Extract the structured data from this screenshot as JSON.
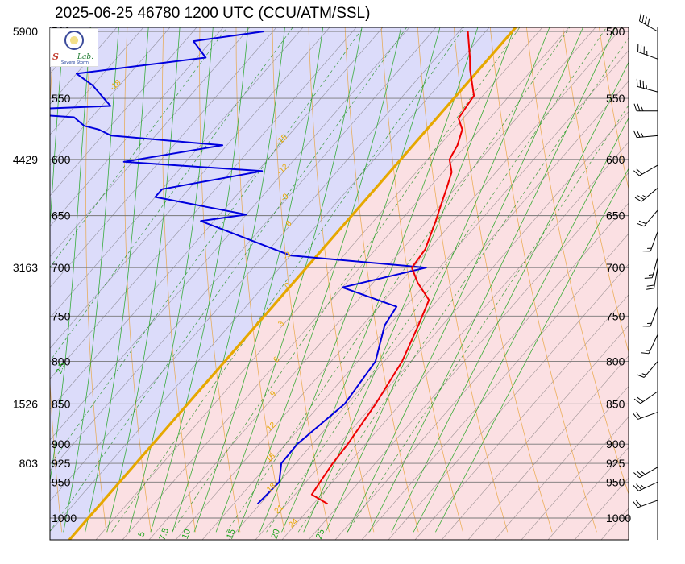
{
  "title": "2025-06-25 46780 1200 UTC (CCU/ATM/SSL)",
  "logo": {
    "mark_s": "S",
    "mark_lab": "Lab.",
    "sub": "Severe Storm"
  },
  "colors": {
    "cold_fill": "#dcdcfa",
    "warm_fill": "#fbe0e3",
    "freezing_line": "#e6a800",
    "temperature": "#ee0000",
    "dewpoint": "#0000dd",
    "dry_adiabat": "#e8a33a",
    "moist_adiabat": "#1aa31a",
    "mixing_ratio": "#118811",
    "isotherm_grid": "#555555",
    "isobar": "#777777"
  },
  "chart_data": {
    "type": "skew-t",
    "pressure_levels": [
      500,
      550,
      600,
      650,
      700,
      750,
      800,
      850,
      900,
      925,
      950,
      1000
    ],
    "height_labels": [
      {
        "pressure": 500,
        "height": "5900"
      },
      {
        "pressure": 600,
        "height": "4429"
      },
      {
        "pressure": 700,
        "height": "3163"
      },
      {
        "pressure": 850,
        "height": "1526"
      },
      {
        "pressure": 925,
        "height": "803"
      }
    ],
    "isotherm_labels": [
      "-15",
      "-12",
      "-9",
      "-6",
      "-3",
      "0",
      "3",
      "6",
      "9",
      "12",
      "15",
      "18",
      "21",
      "24"
    ],
    "isotherm_label_values": [
      -15,
      -12,
      -9,
      -6,
      -3,
      0,
      3,
      6,
      9,
      12,
      15,
      18,
      21,
      24
    ],
    "moist_labels": [
      "5",
      "7.5",
      "10",
      "15",
      "20",
      "25"
    ],
    "moist_label_values": [
      5,
      7.5,
      10,
      15,
      20,
      25
    ],
    "extra_label": "-18",
    "extra_label_2": "2.5",
    "temperature_profile": [
      [
        980,
        25.6
      ],
      [
        967,
        22.9
      ],
      [
        950,
        22.6
      ],
      [
        925,
        22.2
      ],
      [
        900,
        22.0
      ],
      [
        850,
        21.2
      ],
      [
        800,
        20.0
      ],
      [
        760,
        18.3
      ],
      [
        733,
        17.0
      ],
      [
        715,
        14.0
      ],
      [
        700,
        11.9
      ],
      [
        682,
        11.6
      ],
      [
        655,
        10.0
      ],
      [
        640,
        9.0
      ],
      [
        625,
        8.0
      ],
      [
        611,
        7.0
      ],
      [
        600,
        5.5
      ],
      [
        588,
        5.0
      ],
      [
        575,
        4.0
      ],
      [
        566,
        2.5
      ],
      [
        556,
        2.2
      ],
      [
        548,
        2.0
      ],
      [
        528,
        -1.0
      ],
      [
        519,
        -2.2
      ],
      [
        500,
        -5.0
      ]
    ],
    "dewpoint_profile": [
      [
        980,
        17.7
      ],
      [
        950,
        18.0
      ],
      [
        925,
        16.4
      ],
      [
        900,
        16.3
      ],
      [
        850,
        17.7
      ],
      [
        800,
        17.0
      ],
      [
        760,
        14.5
      ],
      [
        740,
        14.0
      ],
      [
        720,
        6.0
      ],
      [
        700,
        13.5
      ],
      [
        688,
        -3.0
      ],
      [
        655,
        -16.5
      ],
      [
        649,
        -12.0
      ],
      [
        633,
        -24.0
      ],
      [
        626,
        -24.0
      ],
      [
        610,
        -14.5
      ],
      [
        602,
        -31.0
      ],
      [
        588,
        -21.5
      ],
      [
        580,
        -35.0
      ],
      [
        575,
        -37.0
      ],
      [
        572,
        -39.0
      ],
      [
        565,
        -41.0
      ],
      [
        560,
        -52.0
      ],
      [
        556,
        -38.0
      ],
      [
        548,
        -40.0
      ],
      [
        540,
        -42.0
      ],
      [
        531,
        -45.0
      ],
      [
        519,
        -32.0
      ],
      [
        507,
        -35.0
      ],
      [
        500,
        -28.0
      ]
    ],
    "wind_barbs": [
      {
        "pressure": 500,
        "direction": 300,
        "speed_kt": 40
      },
      {
        "pressure": 520,
        "direction": 290,
        "speed_kt": 35
      },
      {
        "pressure": 545,
        "direction": 285,
        "speed_kt": 35
      },
      {
        "pressure": 560,
        "direction": 270,
        "speed_kt": 25
      },
      {
        "pressure": 580,
        "direction": 265,
        "speed_kt": 25
      },
      {
        "pressure": 605,
        "direction": 240,
        "speed_kt": 20
      },
      {
        "pressure": 625,
        "direction": 230,
        "speed_kt": 25
      },
      {
        "pressure": 645,
        "direction": 220,
        "speed_kt": 20
      },
      {
        "pressure": 665,
        "direction": 200,
        "speed_kt": 15
      },
      {
        "pressure": 690,
        "direction": 195,
        "speed_kt": 15
      },
      {
        "pressure": 700,
        "direction": 190,
        "speed_kt": 20
      },
      {
        "pressure": 740,
        "direction": 200,
        "speed_kt": 15
      },
      {
        "pressure": 770,
        "direction": 205,
        "speed_kt": 15
      },
      {
        "pressure": 800,
        "direction": 220,
        "speed_kt": 15
      },
      {
        "pressure": 835,
        "direction": 235,
        "speed_kt": 20
      },
      {
        "pressure": 860,
        "direction": 250,
        "speed_kt": 20
      },
      {
        "pressure": 930,
        "direction": 240,
        "speed_kt": 25
      },
      {
        "pressure": 950,
        "direction": 245,
        "speed_kt": 25
      },
      {
        "pressure": 975,
        "direction": 250,
        "speed_kt": 20
      }
    ]
  }
}
